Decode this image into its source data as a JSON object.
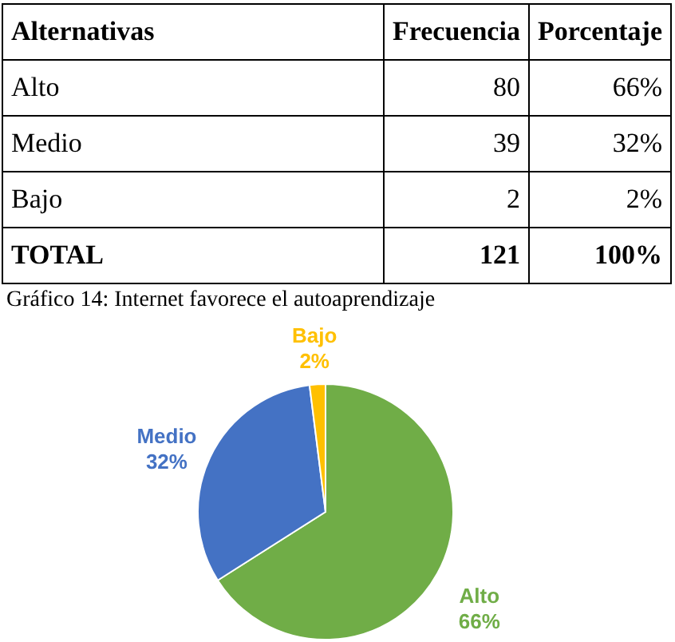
{
  "chart_data": [
    {
      "type": "other",
      "categories": [
        "Alternativas",
        "Frecuencia",
        "Porcentaje"
      ],
      "annotations": [
        "Alto",
        "80",
        "66%",
        "Medio",
        "39",
        "32%",
        "Bajo",
        "2",
        "2%",
        "TOTAL",
        "121",
        "100%"
      ]
    },
    {
      "type": "pie",
      "title": "Gráfico 14: Internet favorece el autoaprendizaje",
      "categories": [
        "Alto",
        "Medio",
        "Bajo"
      ],
      "values": [
        66,
        32,
        2
      ],
      "value_labels": [
        "66%",
        "32%",
        "2%"
      ],
      "colors": [
        "#70ad47",
        "#4472c4",
        "#ffc000"
      ]
    }
  ]
}
